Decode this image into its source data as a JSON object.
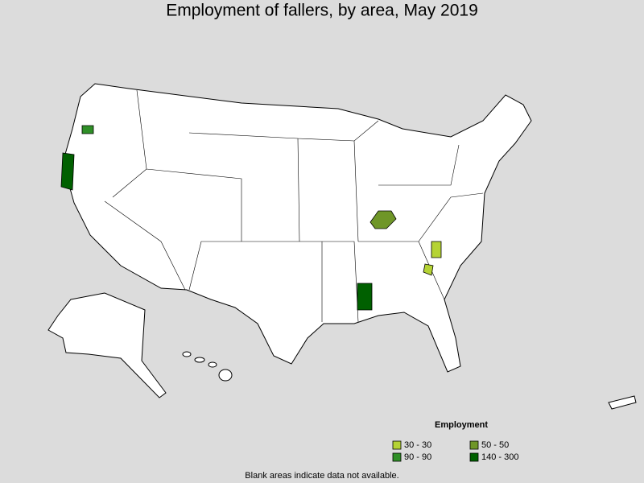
{
  "title": "Employment of fallers, by area, May 2019",
  "legend": {
    "title": "Employment",
    "items": [
      {
        "label": "30 - 30",
        "color": "#b5d334"
      },
      {
        "label": "50 - 50",
        "color": "#6f9628"
      },
      {
        "label": "90 - 90",
        "color": "#2f8f27"
      },
      {
        "label": "140 - 300",
        "color": "#006000"
      }
    ]
  },
  "footnote": "Blank areas indicate data not available."
}
